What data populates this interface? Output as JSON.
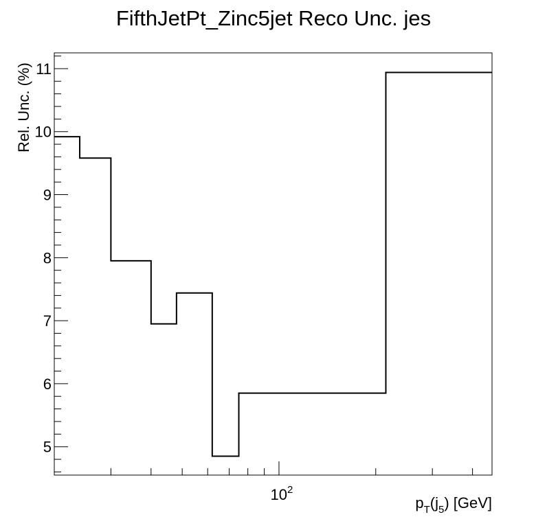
{
  "chart_data": {
    "type": "line",
    "style": "step-histogram",
    "title": "FifthJetPt_Zinc5jet Reco Unc. jes",
    "xlabel": {
      "base": "p",
      "sub1": "T",
      "mid": "(j",
      "sub2": "5",
      "tail": ") [GeV]"
    },
    "ylabel": "Rel. Unc. (%)",
    "x_scale": "log",
    "xlim": [
      20,
      460
    ],
    "ylim": [
      4.55,
      11.25
    ],
    "x_major_ticks": [
      100
    ],
    "x_major_tick_labels": [
      {
        "base": "10",
        "exp": "2"
      }
    ],
    "x_minor_ticks": [
      30,
      40,
      50,
      60,
      70,
      80,
      90,
      200,
      300,
      400
    ],
    "y_major_ticks": [
      5,
      6,
      7,
      8,
      9,
      10,
      11
    ],
    "y_tick_labels": [
      "5",
      "6",
      "7",
      "8",
      "9",
      "10",
      "11"
    ],
    "grid": false,
    "line_color": "#000000",
    "bin_edges": [
      20,
      24,
      30,
      40,
      48,
      62,
      75,
      215,
      460
    ],
    "values": [
      9.92,
      9.58,
      7.95,
      6.95,
      7.44,
      4.85,
      5.85,
      10.94
    ]
  }
}
